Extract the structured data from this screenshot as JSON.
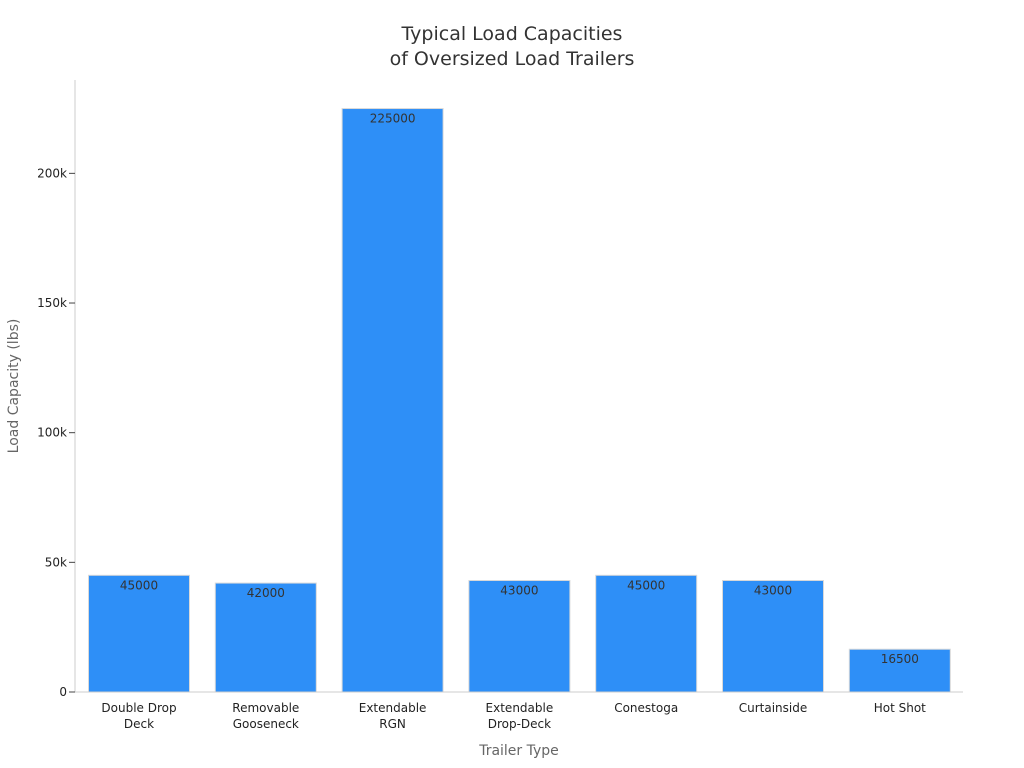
{
  "chart_data": {
    "type": "bar",
    "title": [
      "Typical Load Capacities",
      "of Oversized Load Trailers"
    ],
    "xlabel": "Trailer Type",
    "ylabel": "Load Capacity (lbs)",
    "categories": [
      [
        "Double Drop",
        "Deck"
      ],
      [
        "Removable",
        "Gooseneck"
      ],
      [
        "Extendable",
        "RGN"
      ],
      [
        "Extendable",
        "Drop-Deck"
      ],
      [
        "Conestoga"
      ],
      [
        "Curtainside"
      ],
      [
        "Hot Shot"
      ]
    ],
    "values": [
      45000,
      42000,
      225000,
      43000,
      45000,
      43000,
      16500
    ],
    "data_labels": [
      "45000",
      "42000",
      "225000",
      "43000",
      "45000",
      "43000",
      "16500"
    ],
    "ylim": [
      0,
      236000
    ],
    "yticks": [
      0,
      50000,
      100000,
      150000,
      200000
    ],
    "ytick_labels": [
      "0",
      "50k",
      "100k",
      "150k",
      "200k"
    ],
    "bar_color": "#2e8ff7",
    "grid": false,
    "legend": "none"
  }
}
